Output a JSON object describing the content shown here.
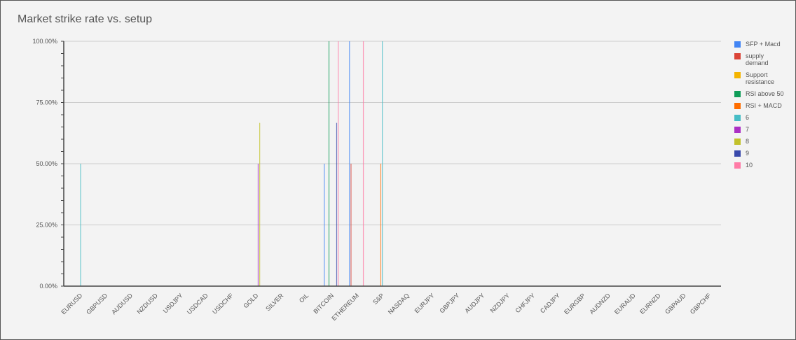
{
  "chart_data": {
    "type": "bar",
    "title": "Market strike rate vs. setup",
    "xlabel": "",
    "ylabel": "",
    "ylim": [
      0,
      1
    ],
    "yticks": [
      "0.00%",
      "25.00%",
      "50.00%",
      "75.00%",
      "100.00%"
    ],
    "grid": true,
    "legend_position": "right",
    "categories": [
      "EURUSD",
      "GBPUSD",
      "AUDUSD",
      "NZDUSD",
      "USDJPY",
      "USDCAD",
      "USDCHF",
      "GOLD",
      "SILVER",
      "OIL",
      "BITCOIN",
      "ETHEREUM",
      "S&P",
      "NASDAQ",
      "EURJPY",
      "GBPJPY",
      "AUDJPY",
      "NZDJPY",
      "CHFJPY",
      "CADJPY",
      "EURGBP",
      "AUDNZD",
      "EURAUD",
      "EURNZD",
      "GBPAUD",
      "GBPCHF"
    ],
    "series": [
      {
        "name": "SFP + Macd",
        "color": "#4285f4",
        "values": [
          0,
          0,
          0,
          0,
          0,
          0,
          0,
          0,
          0,
          0,
          0.5,
          1,
          0,
          0,
          0,
          0,
          0,
          0,
          0,
          0,
          0,
          0,
          0,
          0,
          0,
          0
        ]
      },
      {
        "name": "supply demand",
        "color": "#db4437",
        "values": [
          0,
          0,
          0,
          0,
          0,
          0,
          0,
          0,
          0,
          0,
          0,
          0.5,
          0,
          0,
          0,
          0,
          0,
          0,
          0,
          0,
          0,
          0,
          0,
          0,
          0,
          0
        ]
      },
      {
        "name": "Support resistance",
        "color": "#f4b400",
        "values": [
          0,
          0,
          0,
          0,
          0,
          0,
          0,
          0,
          0,
          0,
          0,
          0,
          0,
          0,
          0,
          0,
          0,
          0,
          0,
          0,
          0,
          0,
          0,
          0,
          0,
          0
        ]
      },
      {
        "name": "RSI above 50",
        "color": "#0f9d58",
        "values": [
          0,
          0,
          0,
          0,
          0,
          0,
          0,
          0,
          0,
          0,
          1,
          0,
          0,
          0,
          0,
          0,
          0,
          0,
          0,
          0,
          0,
          0,
          0,
          0,
          0,
          0
        ]
      },
      {
        "name": "RSI + MACD",
        "color": "#ff6d00",
        "values": [
          0,
          0,
          0,
          0,
          0,
          0,
          0,
          0,
          0,
          0,
          0,
          0,
          0.5,
          0,
          0,
          0,
          0,
          0,
          0,
          0,
          0,
          0,
          0,
          0,
          0,
          0
        ]
      },
      {
        "name": "6",
        "color": "#46bdc6",
        "values": [
          0.5,
          0,
          0,
          0,
          0,
          0,
          0,
          0,
          0,
          0,
          0,
          0,
          1,
          0,
          0,
          0,
          0,
          0,
          0,
          0,
          0,
          0,
          0,
          0,
          0,
          0
        ]
      },
      {
        "name": "7",
        "color": "#ab30c4",
        "values": [
          0,
          0,
          0,
          0,
          0,
          0,
          0,
          0.5,
          0,
          0,
          0,
          0,
          0,
          0,
          0,
          0,
          0,
          0,
          0,
          0,
          0,
          0,
          0,
          0,
          0,
          0
        ]
      },
      {
        "name": "8",
        "color": "#c2c12b",
        "values": [
          0,
          0,
          0,
          0,
          0,
          0,
          0,
          0.6667,
          0,
          0,
          0,
          0,
          0,
          0,
          0,
          0,
          0,
          0,
          0,
          0,
          0,
          0,
          0,
          0,
          0,
          0
        ]
      },
      {
        "name": "9",
        "color": "#3949ab",
        "values": [
          0,
          0,
          0,
          0,
          0,
          0,
          0,
          0,
          0,
          0,
          0.6667,
          0,
          0,
          0,
          0,
          0,
          0,
          0,
          0,
          0,
          0,
          0,
          0,
          0,
          0,
          0
        ]
      },
      {
        "name": "10",
        "color": "#ff7ba6",
        "values": [
          0,
          0,
          0,
          0,
          0,
          0,
          0,
          0,
          0,
          0,
          1,
          1,
          0,
          0,
          0,
          0,
          0,
          0,
          0,
          0,
          0,
          0,
          0,
          0,
          0,
          0
        ]
      }
    ]
  }
}
